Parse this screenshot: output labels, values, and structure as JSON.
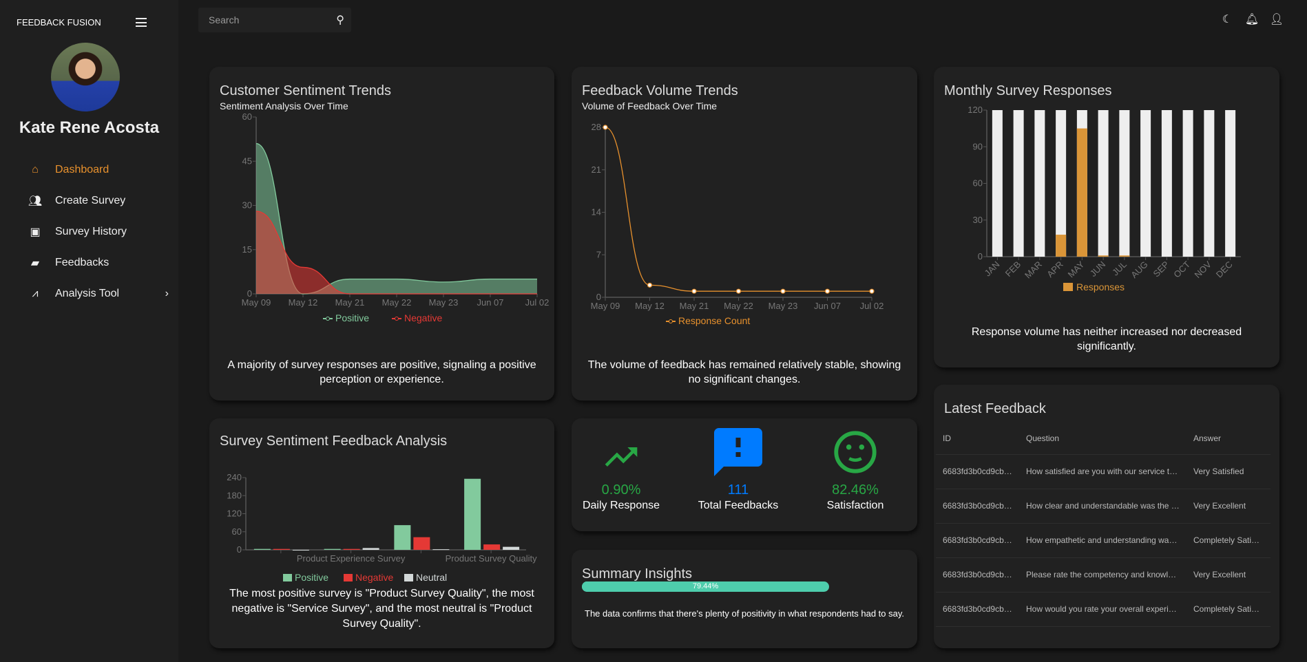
{
  "sidebar": {
    "brand": "FEEDBACK FUSION",
    "user_name": "Kate Rene Acosta",
    "items": [
      {
        "label": "Dashboard",
        "icon": "home-icon",
        "active": true
      },
      {
        "label": "Create Survey",
        "icon": "people-icon"
      },
      {
        "label": "Survey History",
        "icon": "contact-card-icon"
      },
      {
        "label": "Feedbacks",
        "icon": "chat-icon"
      },
      {
        "label": "Analysis Tool",
        "icon": "analytics-icon",
        "has_submenu": true
      }
    ]
  },
  "topbar": {
    "search_placeholder": "Search",
    "icons": [
      "moon-icon",
      "bell-icon",
      "user-icon"
    ]
  },
  "sentiment": {
    "title": "Customer Sentiment Trends",
    "subtitle": "Sentiment Analysis Over Time",
    "description": "A majority of survey responses are positive, signaling a positive perception or experience."
  },
  "volume": {
    "title": "Feedback Volume Trends",
    "subtitle": "Volume of Feedback Over Time",
    "description": "The volume of feedback has remained relatively stable, showing no significant changes."
  },
  "monthly": {
    "title": "Monthly Survey Responses",
    "description": "Response volume has neither increased nor decreased significantly."
  },
  "survey_sentiment": {
    "title": "Survey Sentiment Feedback Analysis",
    "description": "The most positive survey is \"Product Survey Quality\", the most negative is \"Service Survey\", and the most neutral is \"Product Survey Quality\"."
  },
  "stats": [
    {
      "value": "0.90%",
      "label": "Daily Response",
      "icon": "trending-up-icon",
      "color": "#28a745"
    },
    {
      "value": "111",
      "label": "Total Feedbacks",
      "icon": "feedback-alert-icon",
      "color": "#007bff"
    },
    {
      "value": "82.46%",
      "label": "Satisfaction",
      "icon": "smiley-icon",
      "color": "#28a745"
    }
  ],
  "summary": {
    "title": "Summary Insights",
    "progress_label": "79.44%",
    "progress": 79.44,
    "text": "The data confirms that there's plenty of positivity in what respondents had to say."
  },
  "latest": {
    "title": "Latest Feedback",
    "columns": [
      "ID",
      "Question",
      "Answer"
    ],
    "rows": [
      [
        "6683fd3b0cd9cb…",
        "How satisfied are you with our service t…",
        "Very Satisfied"
      ],
      [
        "6683fd3b0cd9cb…",
        "How clear and understandable was the …",
        "Very Excellent"
      ],
      [
        "6683fd3b0cd9cb…",
        "How empathetic and understanding wa…",
        "Completely Sati…"
      ],
      [
        "6683fd3b0cd9cb…",
        "Please rate the competency and knowl…",
        "Very Excellent"
      ],
      [
        "6683fd3b0cd9cb…",
        "How would you rate your overall experi…",
        "Completely Sati…"
      ]
    ]
  },
  "chart_data": [
    {
      "type": "area",
      "categories": [
        "May 09",
        "May 12",
        "May 21",
        "May 22",
        "May 23",
        "Jun 07",
        "Jul 02"
      ],
      "ylim": [
        0,
        60
      ],
      "yticks": [
        0,
        15,
        30,
        45,
        60
      ],
      "legend": "bottom",
      "series": [
        {
          "name": "Positive",
          "values": [
            51,
            0,
            5,
            5,
            4,
            5,
            5
          ],
          "color": "#82ca9d"
        },
        {
          "name": "Negative",
          "values": [
            28,
            9,
            0,
            0,
            0,
            0,
            0
          ],
          "color": "#e53935"
        }
      ]
    },
    {
      "type": "line",
      "categories": [
        "May 09",
        "May 12",
        "May 21",
        "May 22",
        "May 23",
        "Jun 07",
        "Jul 02"
      ],
      "ylim": [
        0,
        28
      ],
      "yticks": [
        0,
        7,
        14,
        21,
        28
      ],
      "legend": "bottom",
      "series": [
        {
          "name": "Response Count",
          "values": [
            28,
            2,
            1,
            1,
            1,
            1,
            1
          ],
          "color": "#e8912d"
        }
      ]
    },
    {
      "type": "bar",
      "categories": [
        "JAN",
        "FEB",
        "MAR",
        "APR",
        "MAY",
        "JUN",
        "JUL",
        "AUG",
        "SEP",
        "OCT",
        "NOV",
        "DEC"
      ],
      "ylim": [
        0,
        120
      ],
      "yticks": [
        0,
        30,
        60,
        90,
        120
      ],
      "legend": "bottom",
      "series": [
        {
          "name": "Responses",
          "values": [
            0,
            0,
            0,
            18,
            105,
            1,
            1,
            0,
            0,
            0,
            0,
            0
          ],
          "color": "#da9538"
        }
      ],
      "background_color": "#eeeeee"
    },
    {
      "type": "bar",
      "categories": [
        "",
        "Product Experience Survey",
        "",
        "Product Survey Quality"
      ],
      "ylim": [
        0,
        240
      ],
      "yticks": [
        0,
        60,
        120,
        180,
        240
      ],
      "legend": "bottom",
      "series": [
        {
          "name": "Positive",
          "values": [
            3,
            3,
            82,
            236
          ],
          "color": "#82ca9d"
        },
        {
          "name": "Negative",
          "values": [
            3,
            3,
            42,
            18
          ],
          "color": "#e53935"
        },
        {
          "name": "Neutral",
          "values": [
            0,
            6,
            2,
            10
          ],
          "color": "#d3d8d8"
        }
      ]
    }
  ]
}
